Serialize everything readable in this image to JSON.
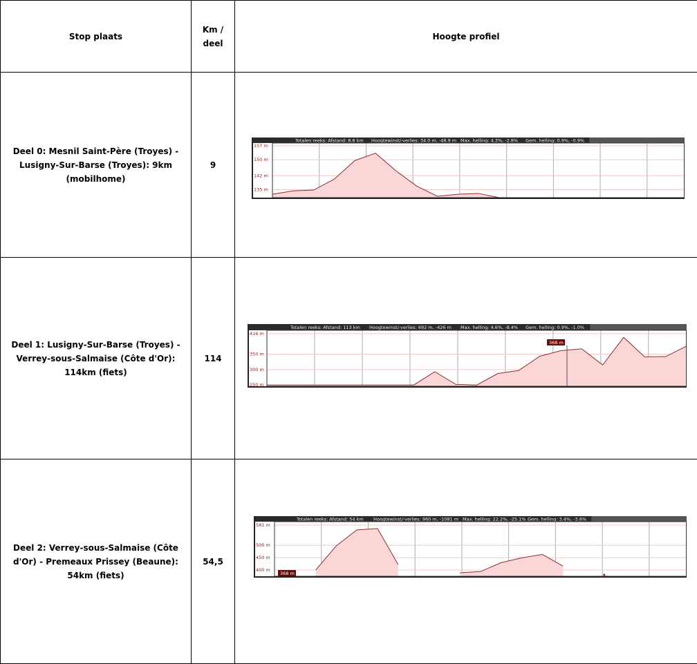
{
  "table": {
    "headers": [
      "Stop plaats",
      "Km / deel",
      "Hoogte profiel"
    ],
    "rows": [
      {
        "stop": "Deel 0: Mesnil Saint-Père (Troyes) - Lusigny-Sur-Barse (Troyes): 9km (mobilhome)",
        "km": "9",
        "profile": {
          "stats": [
            "Totalen reeks:  Afstand: 8.8 km",
            "Hoogtewinst/-verlies: 34.0 m, -48.9 m",
            "Max. helling: 4.3%, -2.8%",
            "Gem. helling: 0.9%, -0.9%"
          ],
          "ylim": [
            131,
            158.4
          ],
          "yticks": [
            {
              "value": 157,
              "label": "157 m"
            },
            {
              "value": 150,
              "label": "150 m"
            },
            {
              "value": 142,
              "label": "142 m"
            },
            {
              "value": 135,
              "label": "135 m"
            }
          ],
          "values": [
            132.7,
            134.4,
            134.8,
            140.3,
            149.6,
            153.3,
            144.4,
            136.8,
            131.7,
            132.7,
            133.1,
            131,
            null,
            null,
            null,
            null,
            null,
            null,
            null,
            null,
            null
          ]
        }
      },
      {
        "stop": "Deel 1: Lusigny-Sur-Barse (Troyes) - Verrey-sous-Salmaise (Côte d'Or): 114km (fiets)",
        "km": "114",
        "profile": {
          "stats": [
            "Totalen reeks:  Afstand: 113 km",
            "Hoogtewinst/-verlies: 692 m, -426 m",
            "Max. helling: 4.6%, -8.4%",
            "Gem. helling: 0.9%, -1.0%"
          ],
          "ylim": [
            246,
            427
          ],
          "yticks": [
            {
              "value": 416,
              "label": "416 m"
            },
            {
              "value": 350,
              "label": "350 m"
            },
            {
              "value": 300,
              "label": "300 m"
            },
            {
              "value": 250,
              "label": "250 m"
            }
          ],
          "values": [
            250,
            250,
            250,
            250,
            250,
            250,
            250,
            250,
            293,
            252,
            250,
            287,
            297,
            343,
            361,
            367,
            315,
            404,
            341,
            342,
            376
          ],
          "marker": "368 m"
        }
      },
      {
        "stop": "Deel 2: Verrey-sous-Salmaise (Côte d'Or) - Premeaux Prissey (Beaune): 54km (fiets)",
        "km": "54,5",
        "profile": {
          "stats": [
            "Totalen reeks:  Afstand: 54 km",
            "Hoogtewinst/-verlies: 960 m, -1081 m",
            "Max. helling: 22.2%, -25.1%",
            "Gem. helling: 3.4%, -3.6%"
          ],
          "ylim": [
            375,
            595
          ],
          "yticks": [
            {
              "value": 581,
              "label": "581 m"
            },
            {
              "value": 500,
              "label": "500 m"
            },
            {
              "value": 450,
              "label": "450 m"
            },
            {
              "value": 400,
              "label": "400 m"
            }
          ],
          "values": [
            null,
            null,
            400,
            498,
            562,
            567,
            422,
            null,
            null,
            389,
            394,
            430,
            449,
            463,
            416,
            null,
            381,
            null,
            null,
            null,
            null
          ],
          "marker": "368 m"
        }
      }
    ]
  }
}
